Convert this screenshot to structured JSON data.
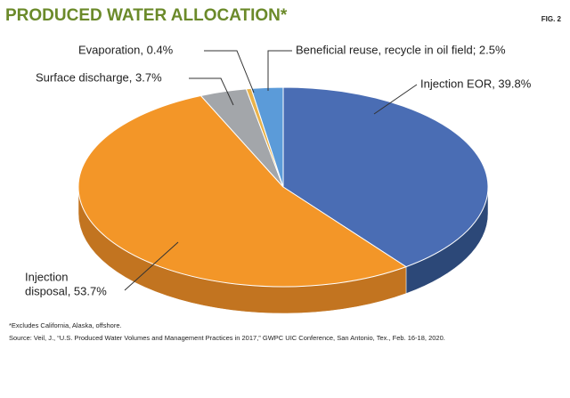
{
  "chart_data": {
    "type": "pie3d",
    "title": "PRODUCED WATER ALLOCATION*",
    "figure": "FIG. 2",
    "values": [
      39.8,
      53.7,
      3.7,
      0.4,
      2.5
    ],
    "value_labels": [
      "Injection EOR, 39.8%",
      [
        "Injection",
        "disposal, 53.7%"
      ],
      "Surface discharge, 3.7%",
      "Evaporation, 0.4%",
      "Beneficial reuse, recycle in oil field; 2.5%"
    ],
    "colors": [
      "#4a6db4",
      "#f39628",
      "#a3a6aa",
      "#e9b24a",
      "#5b9bd9"
    ],
    "side_colors": [
      "#2c4878",
      "#c27420",
      "#75787b",
      "#b88530",
      "#3d72a8"
    ],
    "notes": [
      "*Excludes California, Alaska, offshore.",
      "Source: Veil, J., “U.S. Produced Water Volumes and Management Practices in 2017,” GWPC UIC Conference, San Antonio, Tex., Feb. 16-18, 2020."
    ]
  }
}
